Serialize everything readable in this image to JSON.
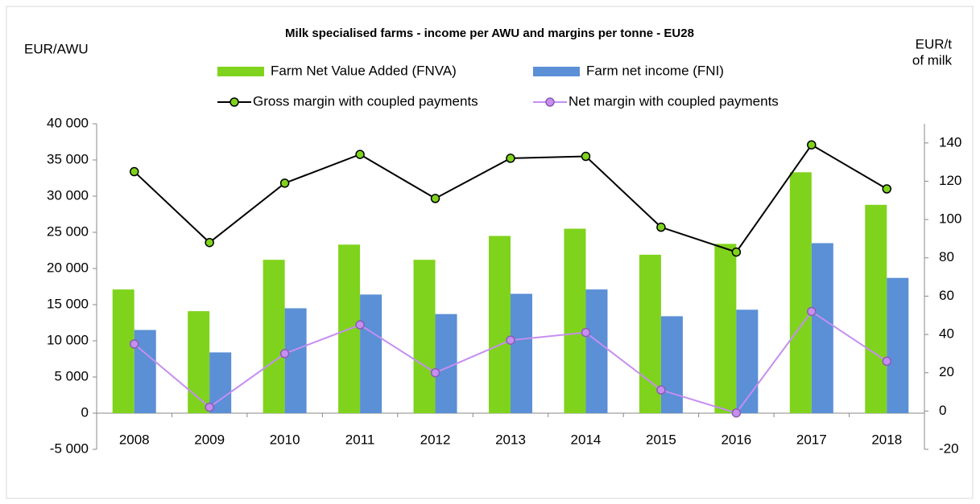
{
  "chart_data": {
    "type": "bar",
    "title": "Milk specialised  farms - income per AWU and margins per tonne - EU28",
    "y_label": "EUR/AWU",
    "y2_label": [
      "EUR/t",
      "of milk"
    ],
    "categories": [
      "2008",
      "2009",
      "2010",
      "2011",
      "2012",
      "2013",
      "2014",
      "2015",
      "2016",
      "2017",
      "2018"
    ],
    "ylim": [
      -5000,
      40000
    ],
    "yticks": [
      {
        "value": -5000,
        "label": "-5 000"
      },
      0,
      {
        "value": 5000,
        "label": "5 000"
      },
      {
        "value": 10000,
        "label": "10 000"
      },
      {
        "value": 15000,
        "label": "15 000"
      },
      {
        "value": 20000,
        "label": "20 000"
      },
      {
        "value": 25000,
        "label": "25 000"
      },
      {
        "value": 30000,
        "label": "30 000"
      },
      {
        "value": 35000,
        "label": "35 000"
      },
      {
        "value": 40000,
        "label": "40 000"
      }
    ],
    "y2lim": [
      -20,
      150
    ],
    "y2ticks": [
      -20,
      0,
      20,
      40,
      60,
      80,
      100,
      120,
      140
    ],
    "grid": false,
    "series": [
      {
        "name": "Farm Net Value Added (FNVA)",
        "type": "bar",
        "color": "#7fd31c",
        "values": [
          17100,
          14100,
          21200,
          23300,
          21200,
          24500,
          25500,
          21900,
          23400,
          33300,
          28800
        ]
      },
      {
        "name": "Farm net income (FNI)",
        "type": "bar",
        "color": "#5b8fd6",
        "values": [
          11500,
          8400,
          14500,
          16400,
          13700,
          16500,
          17100,
          13400,
          14300,
          23500,
          18700
        ]
      },
      {
        "name": "Gross margin with coupled payments",
        "type": "line",
        "axis": "y2",
        "color": "#000000",
        "marker_color": "#7fd31c",
        "values": [
          125,
          88,
          119,
          134,
          111,
          132,
          133,
          96,
          83,
          139,
          116
        ]
      },
      {
        "name": "Net margin with coupled payments",
        "type": "line",
        "axis": "y2",
        "color": "#c58ef0",
        "marker_color": "#c58ef0",
        "values": [
          35,
          2,
          30,
          45,
          20,
          37,
          41,
          11,
          -1,
          52,
          26
        ]
      }
    ]
  }
}
